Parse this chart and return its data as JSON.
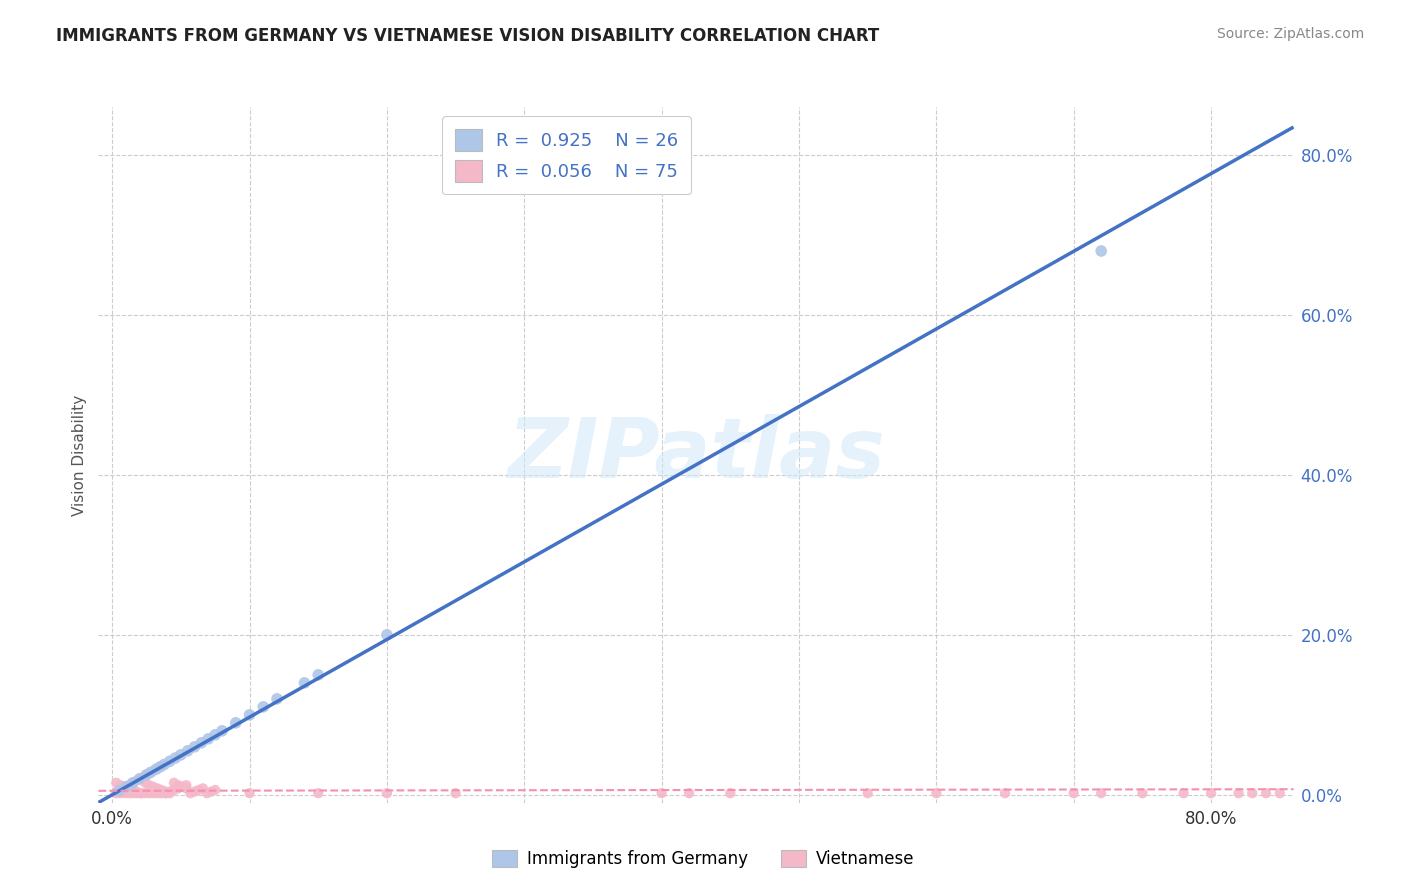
{
  "title": "IMMIGRANTS FROM GERMANY VS VIETNAMESE VISION DISABILITY CORRELATION CHART",
  "source": "Source: ZipAtlas.com",
  "ylabel": "Vision Disability",
  "watermark": "ZIPatlas",
  "legend_r1": "0.925",
  "legend_n1": "26",
  "legend_r2": "0.056",
  "legend_n2": "75",
  "legend_label1": "Immigrants from Germany",
  "legend_label2": "Vietnamese",
  "color_blue": "#aec6e8",
  "color_pink": "#f4b8c8",
  "color_blue_line": "#4472c4",
  "color_pink_line": "#f48fb1",
  "color_blue_text": "#4472c4",
  "xlim": [
    -0.01,
    0.86
  ],
  "ylim": [
    -0.01,
    0.86
  ],
  "yticks": [
    0.0,
    0.2,
    0.4,
    0.6,
    0.8
  ],
  "ytick_labels": [
    "0.0%",
    "20.0%",
    "40.0%",
    "60.0%",
    "80.0%"
  ],
  "xtick_positions": [
    0.0,
    0.8
  ],
  "xtick_labels": [
    "0.0%",
    "80.0%"
  ],
  "grid_color": "#cccccc",
  "background_color": "#ffffff",
  "germany_scatter_x": [
    0.005,
    0.01,
    0.015,
    0.02,
    0.025,
    0.028,
    0.032,
    0.035,
    0.038,
    0.042,
    0.046,
    0.05,
    0.055,
    0.06,
    0.065,
    0.07,
    0.075,
    0.08,
    0.09,
    0.1,
    0.11,
    0.12,
    0.14,
    0.15,
    0.2,
    0.72
  ],
  "germany_scatter_y": [
    0.005,
    0.01,
    0.015,
    0.02,
    0.025,
    0.028,
    0.032,
    0.035,
    0.038,
    0.042,
    0.046,
    0.05,
    0.055,
    0.06,
    0.065,
    0.07,
    0.075,
    0.08,
    0.09,
    0.1,
    0.11,
    0.12,
    0.14,
    0.15,
    0.2,
    0.68
  ],
  "vietnamese_scatter_x": [
    0.003,
    0.006,
    0.009,
    0.012,
    0.015,
    0.018,
    0.021,
    0.024,
    0.027,
    0.03,
    0.033,
    0.036,
    0.039,
    0.042,
    0.045,
    0.048,
    0.051,
    0.054,
    0.057,
    0.06,
    0.063,
    0.066,
    0.069,
    0.072,
    0.075,
    0.003,
    0.006,
    0.009,
    0.012,
    0.015,
    0.018,
    0.021,
    0.024,
    0.027,
    0.03,
    0.033,
    0.036,
    0.039,
    0.042,
    0.045,
    0.048,
    0.051,
    0.054,
    0.003,
    0.006,
    0.009,
    0.012,
    0.015,
    0.018,
    0.021,
    0.024,
    0.027,
    0.03,
    0.033,
    0.036,
    0.039,
    0.1,
    0.15,
    0.2,
    0.25,
    0.4,
    0.42,
    0.45,
    0.55,
    0.6,
    0.65,
    0.7,
    0.72,
    0.75,
    0.78,
    0.8,
    0.82,
    0.83,
    0.84,
    0.85
  ],
  "vietnamese_scatter_y": [
    0.003,
    0.006,
    0.009,
    0.012,
    0.015,
    0.018,
    0.021,
    0.024,
    0.027,
    0.03,
    0.033,
    0.036,
    0.002,
    0.004,
    0.006,
    0.008,
    0.01,
    0.012,
    0.002,
    0.004,
    0.006,
    0.008,
    0.002,
    0.004,
    0.006,
    0.015,
    0.012,
    0.01,
    0.008,
    0.006,
    0.004,
    0.002,
    0.015,
    0.012,
    0.01,
    0.008,
    0.006,
    0.004,
    0.002,
    0.015,
    0.012,
    0.01,
    0.008,
    0.002,
    0.002,
    0.002,
    0.002,
    0.002,
    0.002,
    0.002,
    0.002,
    0.002,
    0.002,
    0.002,
    0.002,
    0.002,
    0.002,
    0.002,
    0.002,
    0.002,
    0.002,
    0.002,
    0.002,
    0.002,
    0.002,
    0.002,
    0.002,
    0.002,
    0.002,
    0.002,
    0.002,
    0.002,
    0.002,
    0.002,
    0.002
  ],
  "germany_line_x": [
    -0.01,
    0.86
  ],
  "germany_line_y": [
    -0.0097,
    0.835
  ],
  "vietnamese_line_x": [
    -0.01,
    0.86
  ],
  "vietnamese_line_y": [
    0.005,
    0.007
  ]
}
